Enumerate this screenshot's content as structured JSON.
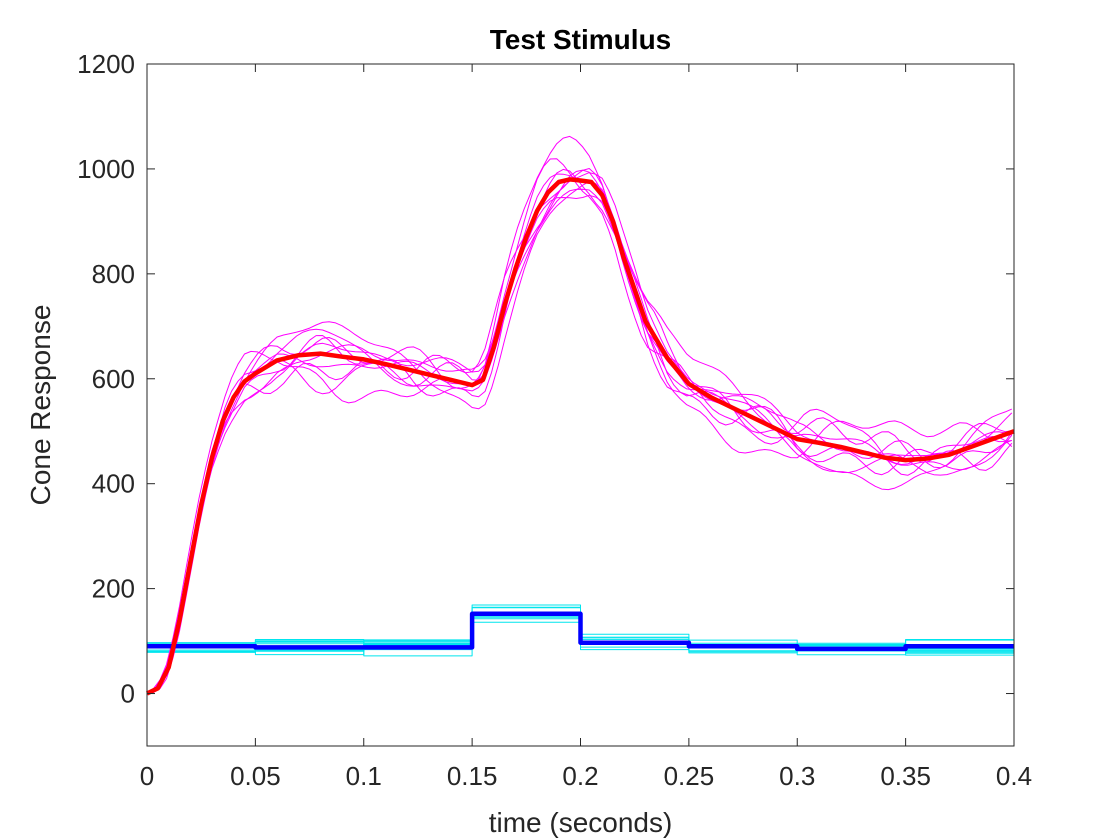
{
  "chart_data": {
    "type": "line",
    "title": "Test Stimulus",
    "xlabel": "time (seconds)",
    "ylabel": "Cone Response",
    "xlim": [
      0,
      0.4
    ],
    "ylim": [
      -100,
      1200
    ],
    "xticks": [
      0,
      0.05,
      0.1,
      0.15,
      0.2,
      0.25,
      0.3,
      0.35,
      0.4
    ],
    "xtick_labels": [
      "0",
      "0.05",
      "0.1",
      "0.15",
      "0.2",
      "0.25",
      "0.3",
      "0.35",
      "0.4"
    ],
    "yticks": [
      0,
      200,
      400,
      600,
      800,
      1000,
      1200
    ],
    "ytick_labels": [
      "0",
      "200",
      "400",
      "600",
      "800",
      "1000",
      "1200"
    ],
    "grid": false,
    "colors": {
      "response_trials": "#ff00ff",
      "response_mean": "#ff0000",
      "stimulus_trials": "#00e5ee",
      "stimulus_mean": "#0000ff",
      "axes": "#262626"
    },
    "series": [
      {
        "role": "response_mean",
        "color": "#ff0000",
        "width": 4.5,
        "x": [
          0,
          0.005,
          0.01,
          0.015,
          0.02,
          0.025,
          0.03,
          0.035,
          0.04,
          0.045,
          0.05,
          0.06,
          0.07,
          0.08,
          0.09,
          0.1,
          0.11,
          0.12,
          0.13,
          0.14,
          0.15,
          0.155,
          0.16,
          0.165,
          0.17,
          0.175,
          0.18,
          0.185,
          0.19,
          0.195,
          0.2,
          0.205,
          0.21,
          0.215,
          0.22,
          0.225,
          0.23,
          0.24,
          0.25,
          0.26,
          0.27,
          0.28,
          0.29,
          0.3,
          0.31,
          0.32,
          0.33,
          0.34,
          0.35,
          0.36,
          0.37,
          0.38,
          0.39,
          0.4
        ],
        "y": [
          0,
          10,
          50,
          140,
          250,
          360,
          450,
          520,
          565,
          595,
          610,
          635,
          645,
          648,
          642,
          637,
          628,
          618,
          608,
          598,
          588,
          598,
          660,
          740,
          810,
          870,
          920,
          955,
          975,
          980,
          978,
          975,
          950,
          900,
          830,
          770,
          710,
          640,
          590,
          565,
          545,
          525,
          505,
          485,
          478,
          470,
          460,
          450,
          445,
          448,
          455,
          470,
          485,
          500
        ]
      },
      {
        "role": "stimulus_mean",
        "color": "#0000ff",
        "width": 4.5,
        "step": true,
        "x": [
          0,
          0.05,
          0.05,
          0.1,
          0.1,
          0.15,
          0.15,
          0.2,
          0.2,
          0.25,
          0.25,
          0.3,
          0.3,
          0.35,
          0.35,
          0.4
        ],
        "y": [
          90,
          90,
          88,
          88,
          88,
          88,
          152,
          152,
          97,
          97,
          90,
          90,
          85,
          85,
          90,
          90
        ]
      }
    ]
  }
}
